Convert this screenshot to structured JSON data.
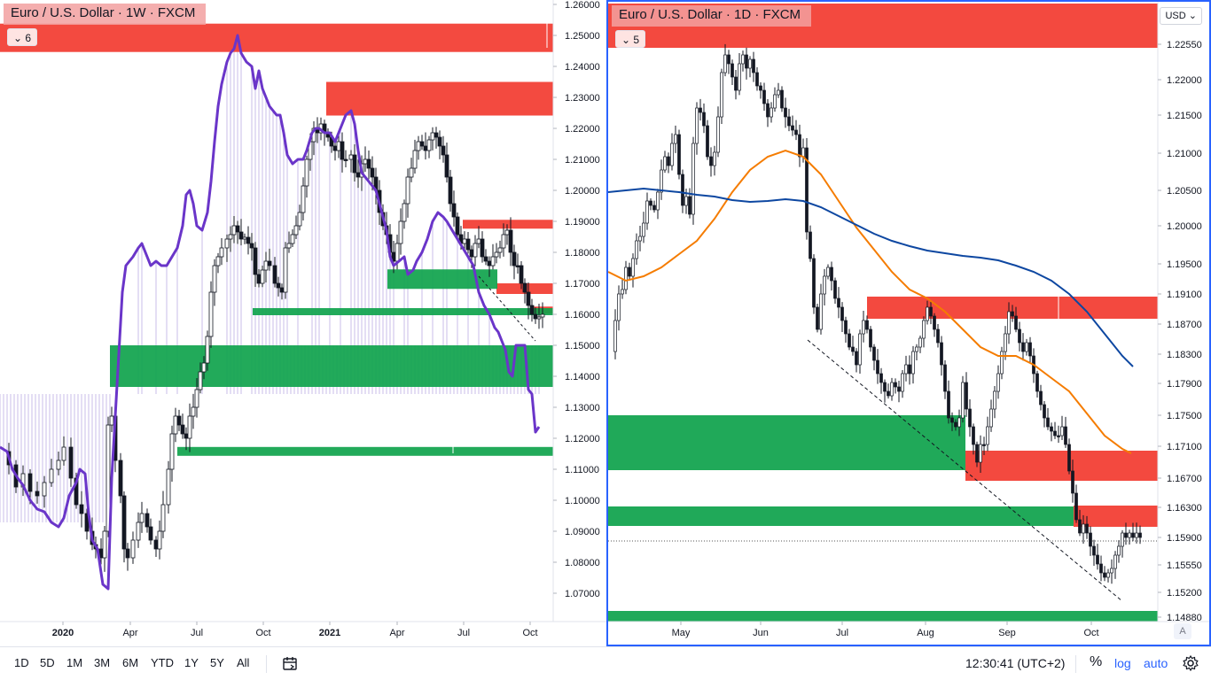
{
  "left_chart": {
    "title": "Euro / U.S. Dollar · 1W · FXCM",
    "collapse_label": "6",
    "price_ticks": [
      "1.26000",
      "1.25000",
      "1.24000",
      "1.23000",
      "1.22000",
      "1.21000",
      "1.20000",
      "1.19000",
      "1.18000",
      "1.17000",
      "1.16000",
      "1.15000",
      "1.14000",
      "1.13000",
      "1.12000",
      "1.11000",
      "1.10000",
      "1.09000",
      "1.08000",
      "1.07000"
    ],
    "time_ticks": [
      "2020",
      "Apr",
      "Jul",
      "Oct",
      "2021",
      "Apr",
      "Jul",
      "Oct"
    ],
    "bold_time_ticks": [
      "2020",
      "2021"
    ],
    "price_range": [
      1.06,
      1.26
    ],
    "colors": {
      "up": "#ffffff",
      "down": "#131722",
      "wick": "#131722",
      "indicator_line": "#6a35c9",
      "indicator_fill": "#c9bce8",
      "supply_zone": "#f23b30",
      "demand_zone": "#0fa34c"
    }
  },
  "right_chart": {
    "title": "Euro / U.S. Dollar · 1D · FXCM",
    "collapse_label": "5",
    "currency_label": "USD",
    "price_ticks": [
      "1.22550",
      "1.22000",
      "1.21500",
      "1.21000",
      "1.20500",
      "1.20000",
      "1.19500",
      "1.19100",
      "1.18700",
      "1.18300",
      "1.17900",
      "1.17500",
      "1.17100",
      "1.16700",
      "1.16300",
      "1.15900",
      "1.15550",
      "1.15200",
      "1.14880"
    ],
    "time_ticks": [
      "May",
      "Jun",
      "Jul",
      "Aug",
      "Sep",
      "Oct"
    ],
    "auto_label": "A",
    "colors": {
      "up": "#ffffff",
      "down": "#131722",
      "wick": "#131722",
      "ma_fast": "#f57c00",
      "ma_slow": "#0d47a1",
      "supply_zone": "#f23b30",
      "demand_zone": "#0fa34c",
      "trend_line": "#131722"
    }
  },
  "bottom_bar": {
    "timeframes": [
      "1D",
      "5D",
      "1M",
      "3M",
      "6M",
      "YTD",
      "1Y",
      "5Y",
      "All"
    ],
    "time": "12:30:41 (UTC+2)",
    "percent": "%",
    "log": "log",
    "auto": "auto"
  }
}
